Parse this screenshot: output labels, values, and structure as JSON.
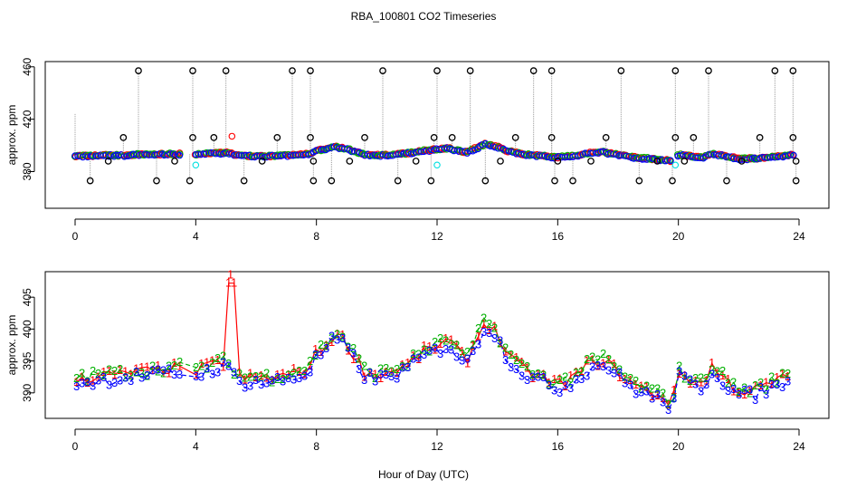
{
  "title": "RBA_100801  CO2 Timeseries",
  "xlabel": "Hour of Day (UTC)",
  "colors": {
    "series1": "#ff0000",
    "series2": "#00b000",
    "series3": "#0000ff",
    "cyan": "#00e0e0",
    "flagged": "#000000",
    "spike": "#9a9a9a"
  },
  "chart_data": [
    {
      "type": "scatter",
      "panel": "top",
      "ylabel": "approx. ppm",
      "xlim": [
        0,
        24
      ],
      "ylim": [
        352,
        464
      ],
      "x_ticks": [
        "0",
        "4",
        "8",
        "12",
        "16",
        "20",
        "24"
      ],
      "y_ticks": [
        "380",
        "420",
        "460"
      ],
      "baseline": [
        [
          0,
          392
        ],
        [
          0.5,
          392
        ],
        [
          1,
          392.5
        ],
        [
          1.5,
          392.5
        ],
        [
          2,
          393
        ],
        [
          2.5,
          393
        ],
        [
          3,
          393.5
        ],
        [
          3.5,
          393.5
        ],
        [
          4,
          393
        ],
        [
          4.5,
          394
        ],
        [
          5,
          394.5
        ],
        [
          5.3,
          393
        ],
        [
          5.5,
          392
        ],
        [
          6,
          392
        ],
        [
          6.5,
          392
        ],
        [
          7,
          392.5
        ],
        [
          7.5,
          393
        ],
        [
          7.8,
          394
        ],
        [
          8,
          396
        ],
        [
          8.3,
          397
        ],
        [
          8.6,
          399
        ],
        [
          8.9,
          398
        ],
        [
          9.2,
          396
        ],
        [
          9.6,
          393
        ],
        [
          10,
          392.5
        ],
        [
          10.5,
          393
        ],
        [
          11,
          394
        ],
        [
          11.5,
          396
        ],
        [
          12,
          397
        ],
        [
          12.4,
          398
        ],
        [
          12.7,
          396
        ],
        [
          13,
          395
        ],
        [
          13.3,
          398
        ],
        [
          13.6,
          401
        ],
        [
          14,
          399
        ],
        [
          14.3,
          396
        ],
        [
          14.7,
          394
        ],
        [
          15,
          393
        ],
        [
          15.5,
          392
        ],
        [
          16,
          391
        ],
        [
          16.5,
          392
        ],
        [
          17,
          394
        ],
        [
          17.5,
          395
        ],
        [
          18,
          393
        ],
        [
          18.5,
          391
        ],
        [
          19,
          390
        ],
        [
          19.5,
          389
        ],
        [
          19.8,
          388
        ],
        [
          20,
          393
        ],
        [
          20.3,
          392
        ],
        [
          20.8,
          391
        ],
        [
          21.1,
          394
        ],
        [
          21.5,
          392
        ],
        [
          22,
          390
        ],
        [
          22.5,
          390
        ],
        [
          23,
          391
        ],
        [
          23.5,
          392
        ],
        [
          23.8,
          393
        ]
      ],
      "flagged_high": [
        [
          2.1,
          457
        ],
        [
          3.9,
          457
        ],
        [
          5.0,
          457
        ],
        [
          7.2,
          457
        ],
        [
          7.8,
          457
        ],
        [
          10.2,
          457
        ],
        [
          12.0,
          457
        ],
        [
          13.1,
          457
        ],
        [
          15.2,
          457
        ],
        [
          15.8,
          457
        ],
        [
          18.1,
          457
        ],
        [
          19.9,
          457
        ],
        [
          21.0,
          457
        ],
        [
          23.2,
          457
        ],
        [
          23.8,
          457
        ]
      ],
      "flagged_mid": [
        [
          1.6,
          406
        ],
        [
          3.9,
          406
        ],
        [
          4.6,
          406
        ],
        [
          6.7,
          406
        ],
        [
          7.8,
          406
        ],
        [
          9.6,
          406
        ],
        [
          11.9,
          406
        ],
        [
          12.5,
          406
        ],
        [
          14.6,
          406
        ],
        [
          15.8,
          406
        ],
        [
          17.6,
          406
        ],
        [
          19.9,
          406
        ],
        [
          20.5,
          406
        ],
        [
          22.7,
          406
        ],
        [
          23.8,
          406
        ]
      ],
      "flagged_low": [
        [
          0.5,
          373
        ],
        [
          2.7,
          373
        ],
        [
          3.8,
          373
        ],
        [
          5.6,
          373
        ],
        [
          7.9,
          373
        ],
        [
          8.5,
          373
        ],
        [
          10.7,
          373
        ],
        [
          11.8,
          373
        ],
        [
          13.6,
          373
        ],
        [
          15.9,
          373
        ],
        [
          16.5,
          373
        ],
        [
          18.7,
          373
        ],
        [
          19.8,
          373
        ],
        [
          21.6,
          373
        ],
        [
          23.9,
          373
        ]
      ],
      "flagged_near": [
        [
          1.1,
          388
        ],
        [
          3.3,
          388
        ],
        [
          6.2,
          388
        ],
        [
          7.9,
          388
        ],
        [
          9.1,
          388
        ],
        [
          11.3,
          388
        ],
        [
          14.1,
          388
        ],
        [
          16.0,
          388
        ],
        [
          17.1,
          388
        ],
        [
          19.3,
          388
        ],
        [
          20.2,
          388
        ],
        [
          22.1,
          388
        ],
        [
          23.9,
          388
        ]
      ],
      "outliers_red": [
        [
          5.2,
          407
        ]
      ],
      "outliers_cyan": [
        [
          4.0,
          385
        ],
        [
          12.0,
          385
        ],
        [
          19.9,
          385
        ]
      ]
    },
    {
      "type": "line",
      "panel": "bottom",
      "ylabel": "approx. ppm",
      "xlim": [
        0,
        24
      ],
      "ylim": [
        386,
        409
      ],
      "x_ticks": [
        "0",
        "4",
        "8",
        "12",
        "16",
        "20",
        "24"
      ],
      "y_ticks": [
        "390",
        "395",
        "400",
        "405"
      ],
      "series_labels": [
        "1",
        "2",
        "3"
      ],
      "spike": {
        "label": "1",
        "x": 5.15,
        "y": 408.5
      }
    }
  ]
}
